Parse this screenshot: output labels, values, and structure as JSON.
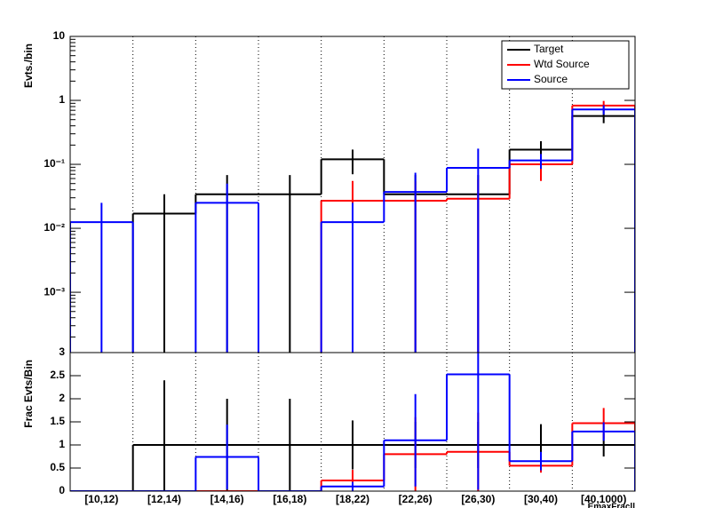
{
  "chart_data": [
    {
      "type": "step",
      "y_label": "Evts./bin",
      "log_scale": true,
      "grid_x": true,
      "legend": "top-right",
      "ylim": [
        0.000114,
        10
      ],
      "yticks": [
        {
          "value": 0.001,
          "label": "10⁻³"
        },
        {
          "value": 0.01,
          "label": "10⁻²"
        },
        {
          "value": 0.1,
          "label": "10⁻¹"
        },
        1,
        10
      ],
      "series": [
        {
          "name": "Target",
          "color": "#000000",
          "values": [
            null,
            0.017,
            0.034,
            0.034,
            0.12,
            0.034,
            0.034,
            0.17,
            0.57
          ],
          "errors": [
            null,
            0.017,
            0.034,
            0.034,
            0.05,
            0.034,
            0.034,
            0.06,
            0.13
          ]
        },
        {
          "name": "Wtd Source",
          "color": "#ff0000",
          "values": [
            null,
            null,
            null,
            null,
            0.027,
            0.027,
            0.029,
            0.1,
            0.83
          ],
          "errors": [
            null,
            null,
            null,
            null,
            0.028,
            0.027,
            0.029,
            0.045,
            0.15
          ]
        },
        {
          "name": "Source",
          "color": "#0000ff",
          "values": [
            0.0125,
            null,
            0.025,
            null,
            0.0125,
            0.037,
            0.088,
            0.115,
            0.72
          ],
          "errors": [
            0.0125,
            null,
            0.025,
            null,
            0.0125,
            0.037,
            0.088,
            0.03,
            0.12
          ]
        }
      ]
    },
    {
      "type": "step",
      "y_label": "Frac Evts/Bin",
      "x_label": "EmaxFracll",
      "log_scale": false,
      "grid_x": true,
      "categories": [
        "[10,12)",
        "[12,14)",
        "[14,16)",
        "[16,18)",
        "[18,22)",
        "[22,26)",
        "[26,30)",
        "[30,40)",
        "[40,1000)"
      ],
      "ylim": [
        0,
        3
      ],
      "yticks": [
        0,
        0.5,
        1,
        1.5,
        2,
        2.5,
        3
      ],
      "series": [
        {
          "color": "#000000",
          "values": [
            0,
            1,
            1,
            1,
            1,
            1,
            1,
            1,
            1
          ],
          "errors": [
            0,
            1.4,
            1,
            1,
            0.53,
            0.5,
            0.5,
            0.45,
            0.25
          ]
        },
        {
          "color": "#ff0000",
          "values": [
            0,
            0,
            0,
            0,
            0.23,
            0.8,
            0.85,
            0.55,
            1.47
          ],
          "errors": [
            0,
            0,
            0,
            0,
            0.23,
            0.8,
            0.85,
            0.15,
            0.33
          ]
        },
        {
          "color": "#0000ff",
          "values": [
            0,
            0,
            0.74,
            0,
            0.1,
            1.1,
            2.53,
            0.65,
            1.29
          ],
          "errors": [
            0,
            0,
            0.7,
            0,
            0.1,
            1,
            2.5,
            0.2,
            0.2
          ]
        }
      ]
    }
  ]
}
